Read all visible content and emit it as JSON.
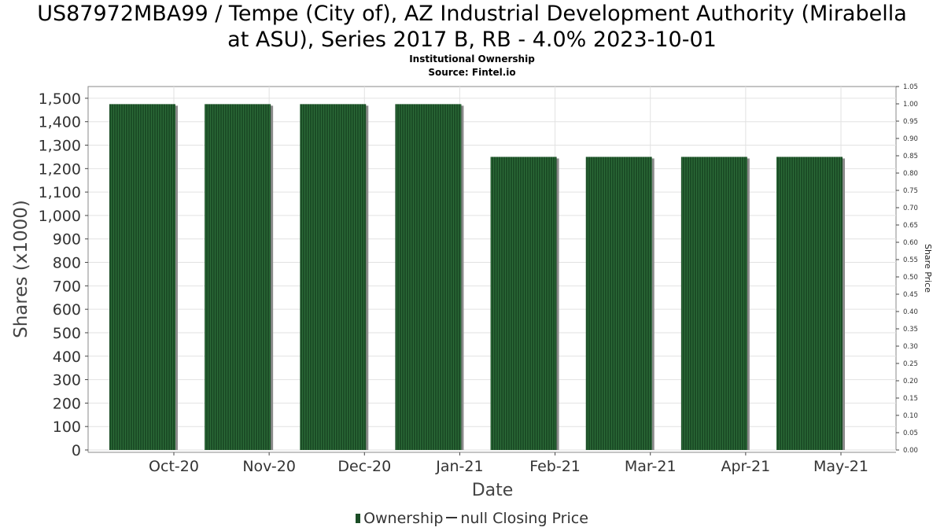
{
  "chart_data": {
    "type": "bar",
    "title": "US87972MBA99 / Tempe (City of), AZ Industrial Development Authority (Mirabella at ASU), Series 2017 B, RB - 4.0% 2023-10-01",
    "title_lines": [
      "US87972MBA99 / Tempe (City of), AZ Industrial Development Authority (Mirabella",
      "at ASU), Series 2017 B, RB - 4.0% 2023-10-01"
    ],
    "subtitle": "Institutional Ownership",
    "source": "Source: Fintel.io",
    "xlabel": "Date",
    "ylabel": "Shares (x1000)",
    "y2label": "Share Price",
    "categories": [
      "Oct-20",
      "Nov-20",
      "Dec-20",
      "Jan-21",
      "Feb-21",
      "Mar-21",
      "Apr-21",
      "May-21"
    ],
    "series": [
      {
        "name": "Ownership",
        "values": [
          1475,
          1475,
          1475,
          1475,
          1250,
          1250,
          1250,
          1250
        ]
      }
    ],
    "ylim": [
      0,
      1550
    ],
    "yticks": [
      0,
      100,
      200,
      300,
      400,
      500,
      600,
      700,
      800,
      900,
      1000,
      1100,
      1200,
      1300,
      1400,
      1500
    ],
    "ytick_labels": [
      "0",
      "100",
      "200",
      "300",
      "400",
      "500",
      "600",
      "700",
      "800",
      "900",
      "1,000",
      "1,100",
      "1,200",
      "1,300",
      "1,400",
      "1,500"
    ],
    "y2lim": [
      0,
      1.05
    ],
    "y2ticks": [
      0,
      0.05,
      0.1,
      0.15,
      0.2,
      0.25,
      0.3,
      0.35,
      0.4,
      0.45,
      0.5,
      0.55,
      0.6,
      0.65,
      0.7,
      0.75,
      0.8,
      0.85,
      0.9,
      0.95,
      1.0,
      1.05
    ],
    "y2tick_labels": [
      "0.00",
      "0.05",
      "0.10",
      "0.15",
      "0.20",
      "0.25",
      "0.30",
      "0.35",
      "0.40",
      "0.45",
      "0.50",
      "0.55",
      "0.60",
      "0.65",
      "0.70",
      "0.75",
      "0.80",
      "0.85",
      "0.90",
      "0.95",
      "1.00",
      "1.05"
    ],
    "grid": true,
    "legend": {
      "placement": "bottom",
      "ownership_label": "Ownership",
      "price_label": "null Closing Price"
    },
    "colors": {
      "bar": "#1b4d26",
      "bar_stripe": "#2c6b38",
      "bar_shadow": "#8a8a8a",
      "grid": "#e2e2e2",
      "axis": "#888888"
    }
  }
}
